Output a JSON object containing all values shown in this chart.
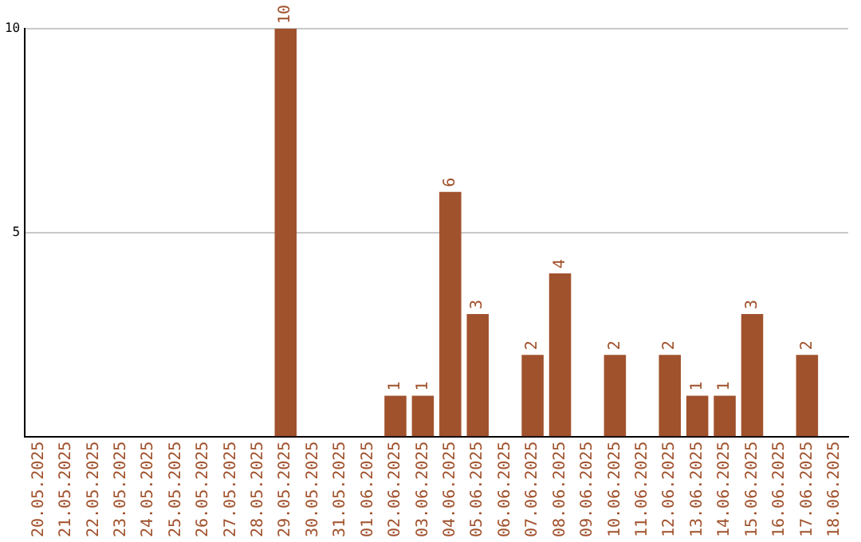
{
  "chart_data": {
    "type": "bar",
    "categories": [
      "20.05.2025",
      "21.05.2025",
      "22.05.2025",
      "23.05.2025",
      "24.05.2025",
      "25.05.2025",
      "26.05.2025",
      "27.05.2025",
      "28.05.2025",
      "29.05.2025",
      "30.05.2025",
      "31.05.2025",
      "01.06.2025",
      "02.06.2025",
      "03.06.2025",
      "04.06.2025",
      "05.06.2025",
      "06.06.2025",
      "07.06.2025",
      "08.06.2025",
      "09.06.2025",
      "10.06.2025",
      "11.06.2025",
      "12.06.2025",
      "13.06.2025",
      "14.06.2025",
      "15.06.2025",
      "16.06.2025",
      "17.06.2025",
      "18.06.2025"
    ],
    "values": [
      0,
      0,
      0,
      0,
      0,
      0,
      0,
      0,
      0,
      10,
      0,
      0,
      0,
      1,
      1,
      6,
      3,
      0,
      2,
      4,
      0,
      2,
      0,
      2,
      1,
      1,
      3,
      0,
      2,
      0
    ],
    "value_labels": [
      null,
      null,
      null,
      null,
      null,
      null,
      null,
      null,
      null,
      "10",
      null,
      null,
      null,
      "1",
      "1",
      "6",
      "3",
      null,
      "2",
      "4",
      null,
      "2",
      null,
      "2",
      "1",
      "1",
      "3",
      null,
      "2",
      null
    ],
    "color": "#a0522d",
    "ylim": [
      0,
      10
    ],
    "yticks": [
      5,
      10
    ],
    "grid": "y"
  }
}
